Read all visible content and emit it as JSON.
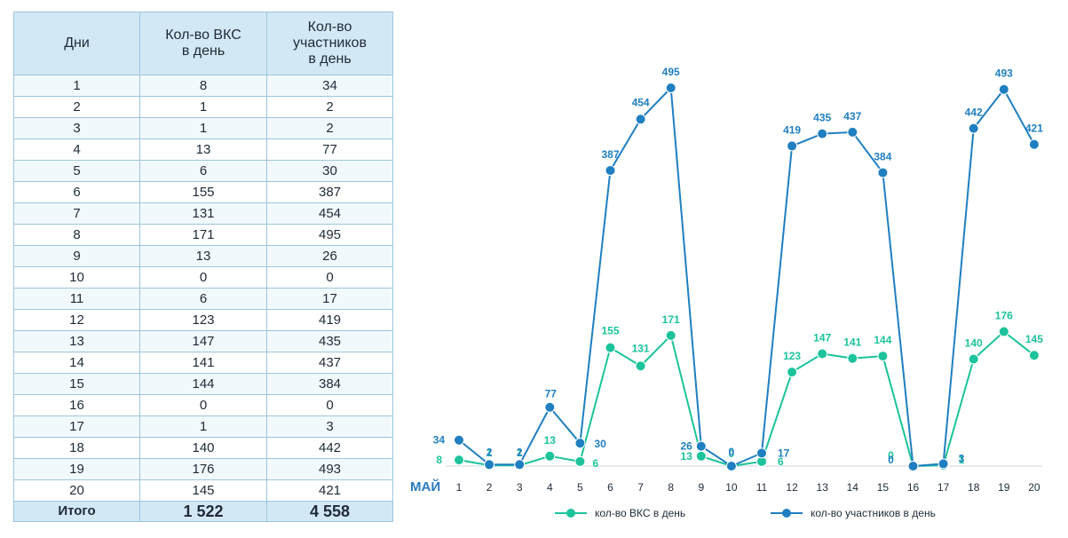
{
  "table": {
    "headers": {
      "days": "Дни",
      "vks": [
        "Кол-во ВКС",
        "в день"
      ],
      "participants": [
        "Кол-во",
        "участников",
        "в день"
      ]
    },
    "rows": [
      {
        "day": "1",
        "vks": "8",
        "participants": "34"
      },
      {
        "day": "2",
        "vks": "1",
        "participants": "2"
      },
      {
        "day": "3",
        "vks": "1",
        "participants": "2"
      },
      {
        "day": "4",
        "vks": "13",
        "participants": "77"
      },
      {
        "day": "5",
        "vks": "6",
        "participants": "30"
      },
      {
        "day": "6",
        "vks": "155",
        "participants": "387"
      },
      {
        "day": "7",
        "vks": "131",
        "participants": "454"
      },
      {
        "day": "8",
        "vks": "171",
        "participants": "495"
      },
      {
        "day": "9",
        "vks": "13",
        "participants": "26"
      },
      {
        "day": "10",
        "vks": "0",
        "participants": "0"
      },
      {
        "day": "11",
        "vks": "6",
        "participants": "17"
      },
      {
        "day": "12",
        "vks": "123",
        "participants": "419"
      },
      {
        "day": "13",
        "vks": "147",
        "participants": "435"
      },
      {
        "day": "14",
        "vks": "141",
        "participants": "437"
      },
      {
        "day": "15",
        "vks": "144",
        "participants": "384"
      },
      {
        "day": "16",
        "vks": "0",
        "participants": "0"
      },
      {
        "day": "17",
        "vks": "1",
        "participants": "3"
      },
      {
        "day": "18",
        "vks": "140",
        "participants": "442"
      },
      {
        "day": "19",
        "vks": "176",
        "participants": "493"
      },
      {
        "day": "20",
        "vks": "145",
        "participants": "421"
      }
    ],
    "total": {
      "label": "Итого",
      "vks": "1 522",
      "participants": "4 558"
    }
  },
  "chart_data": {
    "type": "line",
    "xlabel": "МАЙ",
    "ylabel": "",
    "categories": [
      "1",
      "2",
      "3",
      "4",
      "5",
      "6",
      "7",
      "8",
      "9",
      "10",
      "11",
      "12",
      "13",
      "14",
      "15",
      "16",
      "17",
      "18",
      "19",
      "20"
    ],
    "ylim": [
      0,
      500
    ],
    "grid": false,
    "legend_position": "bottom",
    "series": [
      {
        "name": "кол-во ВКС в день",
        "color": "#1cc39b",
        "values": [
          8,
          1,
          1,
          13,
          6,
          155,
          131,
          171,
          13,
          0,
          6,
          123,
          147,
          141,
          144,
          0,
          1,
          140,
          176,
          145
        ]
      },
      {
        "name": "кол-во участников в день",
        "color": "#1f7fc0",
        "values": [
          34,
          2,
          2,
          77,
          30,
          387,
          454,
          495,
          26,
          0,
          17,
          419,
          435,
          437,
          384,
          0,
          3,
          442,
          493,
          421
        ]
      }
    ]
  }
}
